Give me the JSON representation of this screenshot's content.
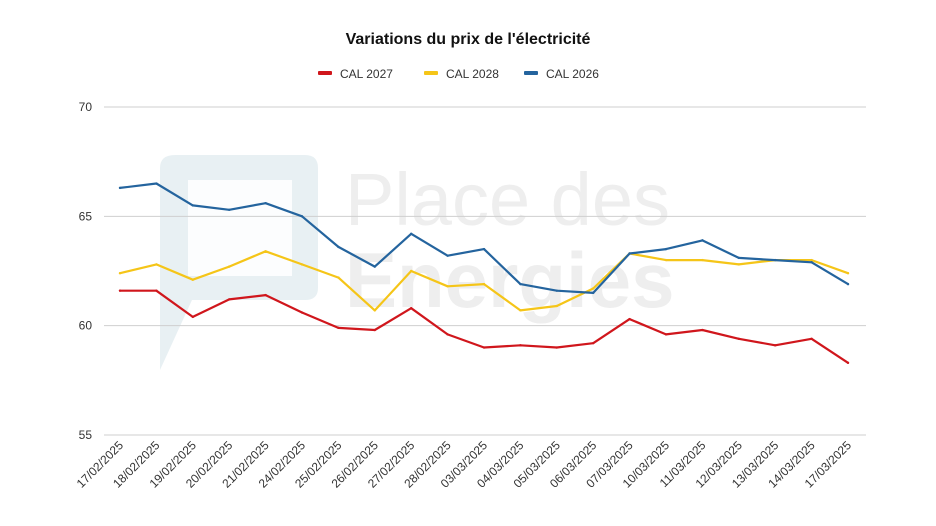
{
  "chart_data": {
    "type": "line",
    "title": "Variations du prix de l'électricité",
    "xlabel": "",
    "ylabel": "",
    "ylim": [
      55,
      70
    ],
    "yticks": [
      "55",
      "60",
      "65",
      "70"
    ],
    "grid": true,
    "legend_position": "top-center",
    "categories": [
      "17/02/2025",
      "18/02/2025",
      "19/02/2025",
      "20/02/2025",
      "21/02/2025",
      "24/02/2025",
      "25/02/2025",
      "26/02/2025",
      "27/02/2025",
      "28/02/2025",
      "03/03/2025",
      "04/03/2025",
      "05/03/2025",
      "06/03/2025",
      "07/03/2025",
      "10/03/2025",
      "11/03/2025",
      "12/03/2025",
      "13/03/2025",
      "14/03/2025",
      "17/03/2025"
    ],
    "series": [
      {
        "name": "CAL 2027",
        "color": "#d0161c",
        "values": [
          61.6,
          61.6,
          60.4,
          61.2,
          61.4,
          60.6,
          59.9,
          59.8,
          60.8,
          59.6,
          59.0,
          59.1,
          59.0,
          59.2,
          60.3,
          59.6,
          59.8,
          59.4,
          59.1,
          59.4,
          58.3
        ]
      },
      {
        "name": "CAL 2028",
        "color": "#f5c518",
        "values": [
          62.4,
          62.8,
          62.1,
          62.7,
          63.4,
          62.8,
          62.2,
          60.7,
          62.5,
          61.8,
          61.9,
          60.7,
          60.9,
          61.7,
          63.3,
          63.0,
          63.0,
          62.8,
          63.0,
          63.0,
          62.4
        ]
      },
      {
        "name": "CAL 2026",
        "color": "#24649e",
        "values": [
          66.3,
          66.5,
          65.5,
          65.3,
          65.6,
          65.0,
          63.6,
          62.7,
          64.2,
          63.2,
          63.5,
          61.9,
          61.6,
          61.5,
          63.3,
          63.5,
          63.9,
          63.1,
          63.0,
          62.9,
          61.9
        ]
      }
    ]
  },
  "watermark": {
    "line1": "Place des",
    "line2": "Energies",
    "logo_icon": "place-des-energies-logo-icon",
    "color": "#e8eef1"
  }
}
